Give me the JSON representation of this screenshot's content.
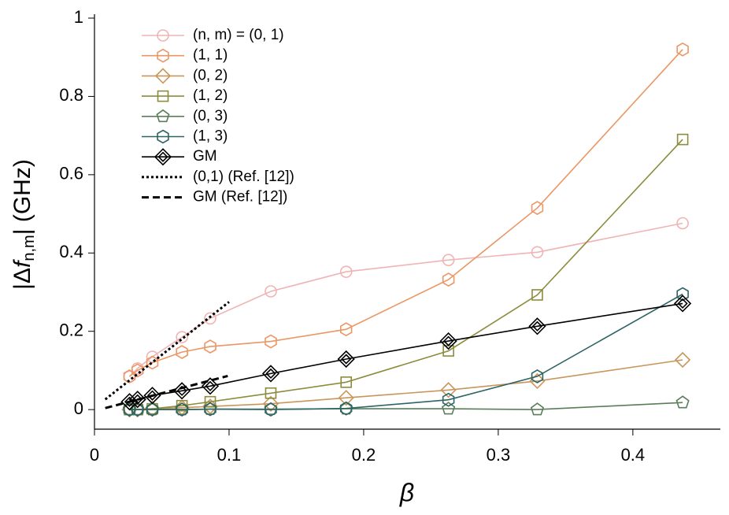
{
  "chart_data": {
    "type": "line",
    "xlabel": "β",
    "ylabel": [
      "|Δ",
      "f",
      "n,m",
      "| (GHz)"
    ],
    "x": [
      0.026,
      0.032,
      0.043,
      0.065,
      0.086,
      0.131,
      0.187,
      0.263,
      0.329,
      0.437
    ],
    "xlim": [
      0,
      0.465
    ],
    "ylim": [
      -0.05,
      1.0
    ],
    "xticks": [
      0,
      0.1,
      0.2,
      0.3,
      0.4
    ],
    "yticks": [
      0,
      0.2,
      0.4,
      0.6,
      0.8,
      1
    ],
    "series": [
      {
        "name": "(n, m) = (0, 1)",
        "color": "#f0b4b4",
        "marker": "circle",
        "values": [
          0.084,
          0.105,
          0.135,
          0.185,
          0.233,
          0.302,
          0.352,
          0.382,
          0.402,
          0.476
        ]
      },
      {
        "name": "(1, 1)",
        "color": "#eb9664",
        "marker": "hexagon",
        "values": [
          0.085,
          0.1,
          0.12,
          0.147,
          0.161,
          0.174,
          0.205,
          0.332,
          0.515,
          0.92
        ]
      },
      {
        "name": "(0, 2)",
        "color": "#c8965a",
        "marker": "diamond",
        "values": [
          0.0,
          0.0,
          0.002,
          0.005,
          0.008,
          0.015,
          0.03,
          0.05,
          0.073,
          0.127
        ]
      },
      {
        "name": "(1, 2)",
        "color": "#8c8c3c",
        "marker": "square",
        "values": [
          0.0,
          0.0,
          0.002,
          0.01,
          0.02,
          0.042,
          0.07,
          0.15,
          0.293,
          0.69
        ]
      },
      {
        "name": "(0, 3)",
        "color": "#5a7d5a",
        "marker": "pentagon",
        "values": [
          0.0,
          0.0,
          0.0,
          0.0,
          0.001,
          0.001,
          0.002,
          0.002,
          0.0,
          0.018
        ]
      },
      {
        "name": "(1, 3)",
        "color": "#2d6464",
        "marker": "hexagon",
        "values": [
          0.0,
          0.0,
          0.0,
          0.0,
          0.001,
          0.0,
          0.003,
          0.025,
          0.085,
          0.295
        ]
      },
      {
        "name": "GM",
        "color": "#000000",
        "marker": "double-diamond",
        "values": [
          0.02,
          0.026,
          0.036,
          0.048,
          0.06,
          0.092,
          0.129,
          0.175,
          0.213,
          0.271
        ]
      }
    ],
    "reference_lines": [
      {
        "name": "(0,1) (Ref. [12])",
        "color": "#000000",
        "style": "dotted",
        "x": [
          0.008,
          0.1
        ],
        "values": [
          0.026,
          0.275
        ]
      },
      {
        "name": "GM (Ref. [12])",
        "color": "#000000",
        "style": "dashed",
        "x": [
          0.008,
          0.099
        ],
        "values": [
          0.004,
          0.086
        ]
      }
    ]
  }
}
